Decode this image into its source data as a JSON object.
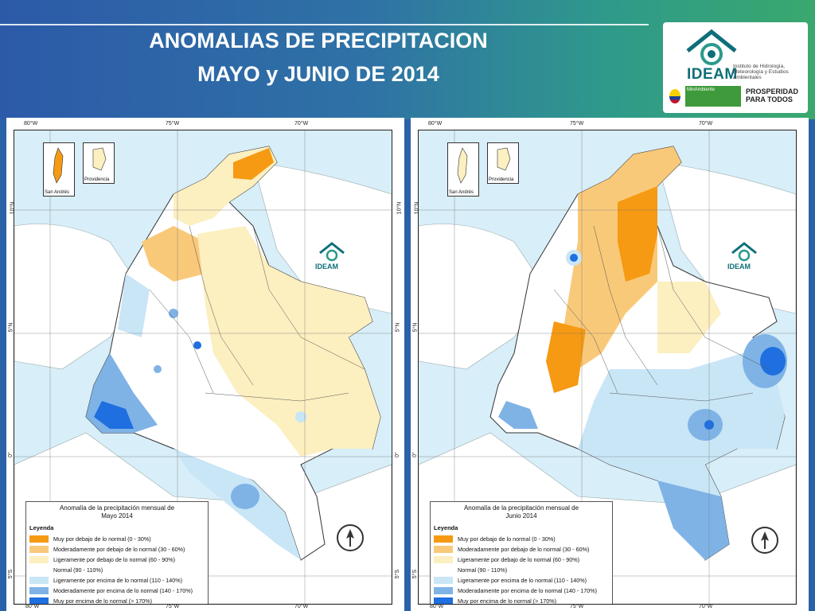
{
  "header": {
    "title_line1": "ANOMALIAS DE PRECIPITACION",
    "title_line2": "MAYO y JUNIO DE 2014"
  },
  "logo": {
    "name": "IDEAM",
    "institute": "Instituto de Hidrología, Meteorología y Estudios Ambientales",
    "ministry": "MinAmbiente",
    "slogan_line1": "PROSPERIDAD",
    "slogan_line2": "PARA TODOS"
  },
  "maps": [
    {
      "legend_title_line1": "Anomalía de la precipitación mensual de",
      "legend_title_line2": "Mayo 2014",
      "inset_left": "San Andrés",
      "inset_right": "Providencia",
      "map_logo": "IDEAM"
    },
    {
      "legend_title_line1": "Anomalía de la precipitación mensual de",
      "legend_title_line2": "Junio 2014",
      "inset_left": "San Andrés",
      "inset_right": "Providencia",
      "map_logo": "IDEAM"
    }
  ],
  "axes": {
    "top": [
      "80°W",
      "75°W",
      "70°W"
    ],
    "bottom": [
      "80°W",
      "75°W",
      "70°W"
    ],
    "lat": [
      "10°N",
      "5°N",
      "0°",
      "5°S"
    ]
  },
  "legend": {
    "heading": "Leyenda",
    "items": [
      {
        "label": "Muy por debajo de lo normal (0 - 30%)",
        "color": "#f59a12"
      },
      {
        "label": "Moderadamente por debajo de lo normal (30 - 60%)",
        "color": "#f9c97a"
      },
      {
        "label": "Ligeramente por debajo de lo normal (60 - 90%)",
        "color": "#fcefc0"
      },
      {
        "label": "Normal (90 - 110%)",
        "color": "#ffffff"
      },
      {
        "label": "Ligeramente por encima de lo normal (110 - 140%)",
        "color": "#c9e6f7"
      },
      {
        "label": "Moderadamente por encima de lo normal (140 - 170%)",
        "color": "#7fb3e6"
      },
      {
        "label": "Muy por encima de lo normal (> 170%)",
        "color": "#1f6fe0"
      }
    ]
  }
}
